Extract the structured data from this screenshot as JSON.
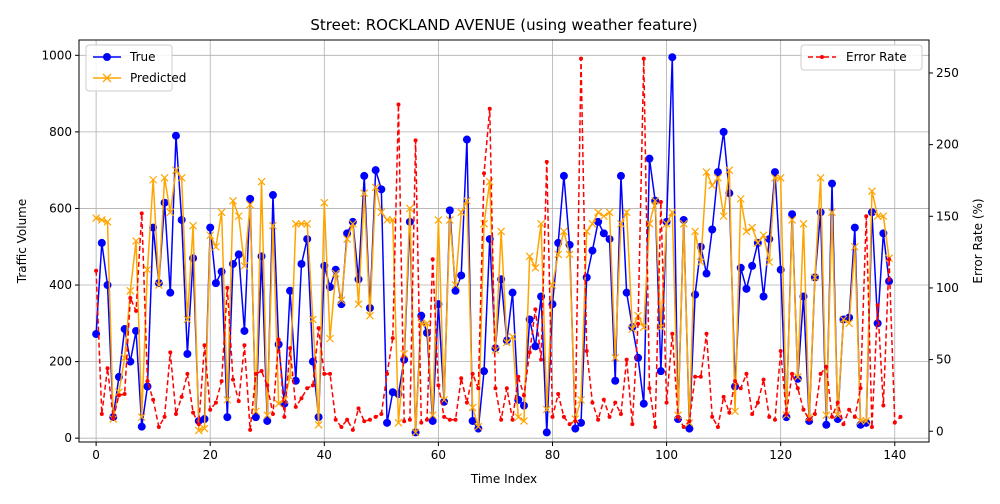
{
  "chart_data": {
    "type": "line",
    "title": "Street: ROCKLAND AVENUE (using weather feature)",
    "xlabel": "Time Index",
    "ylabel": "Traffic Volume",
    "ylabel_right": "Error Rate (%)",
    "xlim": [
      -3,
      146
    ],
    "ylim": [
      -10,
      1040
    ],
    "ylim_right": [
      -7.5,
      273
    ],
    "x_ticks": [
      0,
      20,
      40,
      60,
      80,
      100,
      120,
      140
    ],
    "y_ticks": [
      0,
      200,
      400,
      600,
      800,
      1000
    ],
    "y_ticks_right": [
      0,
      50,
      100,
      150,
      200,
      250
    ],
    "grid": true,
    "legend_left": "upper-left",
    "legend_right": "upper-right",
    "series": [
      {
        "name": "True",
        "axis": "left",
        "color": "#0000ff",
        "marker": "circle",
        "values": [
          272,
          510,
          400,
          55,
          160,
          285,
          200,
          280,
          30,
          135,
          550,
          405,
          615,
          380,
          790,
          570,
          220,
          470,
          45,
          50,
          550,
          405,
          435,
          55,
          455,
          480,
          280,
          625,
          55,
          475,
          45,
          635,
          245,
          90,
          385,
          150,
          455,
          520,
          200,
          55,
          450,
          395,
          440,
          350,
          535,
          565,
          415,
          685,
          340,
          700,
          650,
          40,
          120,
          115,
          205,
          565,
          15,
          320,
          275,
          45,
          350,
          95,
          595,
          385,
          425,
          780,
          45,
          25,
          175,
          520,
          235,
          415,
          255,
          380,
          100,
          85,
          310,
          240,
          370,
          15,
          350,
          510,
          685,
          505,
          25,
          40,
          420,
          490,
          565,
          535,
          520,
          150,
          685,
          380,
          290,
          210,
          90,
          730,
          620,
          175,
          565,
          995,
          50,
          570,
          25,
          375,
          500,
          430,
          545,
          695,
          800,
          640,
          135,
          445,
          390,
          450,
          510,
          370,
          520,
          695,
          440,
          55,
          585,
          155,
          370,
          45,
          420,
          590,
          35,
          665,
          50,
          310,
          315,
          550,
          35,
          40,
          590,
          300,
          535,
          410
        ]
      },
      {
        "name": "Predicted",
        "axis": "left",
        "color": "#ffa500",
        "marker": "x",
        "values": [
          575,
          570,
          565,
          50,
          120,
          210,
          385,
          515,
          55,
          440,
          675,
          400,
          680,
          590,
          700,
          680,
          310,
          555,
          20,
          25,
          530,
          500,
          590,
          100,
          620,
          580,
          450,
          610,
          70,
          670,
          60,
          555,
          90,
          100,
          160,
          560,
          560,
          560,
          310,
          35,
          615,
          260,
          430,
          360,
          520,
          560,
          350,
          640,
          320,
          655,
          590,
          570,
          570,
          40,
          220,
          600,
          15,
          300,
          300,
          60,
          570,
          100,
          570,
          400,
          590,
          620,
          80,
          30,
          560,
          670,
          230,
          540,
          250,
          265,
          55,
          45,
          475,
          445,
          560,
          75,
          400,
          480,
          540,
          480,
          50,
          100,
          540,
          560,
          590,
          580,
          590,
          210,
          560,
          590,
          285,
          320,
          290,
          560,
          620,
          290,
          560,
          590,
          60,
          560,
          40,
          540,
          460,
          695,
          660,
          680,
          580,
          700,
          70,
          625,
          540,
          550,
          510,
          530,
          460,
          680,
          680,
          60,
          570,
          160,
          560,
          55,
          420,
          680,
          60,
          590,
          60,
          310,
          300,
          500,
          45,
          45,
          645,
          580,
          580,
          470
        ]
      },
      {
        "name": "Error Rate",
        "axis": "right",
        "color": "#ff0000",
        "marker": "dot",
        "style": "dashed",
        "values": [
          112,
          12,
          44,
          9,
          25,
          26,
          93,
          84,
          152,
          35,
          22,
          3,
          10,
          55,
          12,
          24,
          40,
          13,
          5,
          60,
          15,
          20,
          35,
          100,
          36,
          21,
          60,
          1,
          40,
          42,
          32,
          12,
          64,
          10,
          58,
          17,
          23,
          30,
          32,
          72,
          40,
          40,
          8,
          3,
          8,
          1,
          16,
          7,
          8,
          10,
          12,
          40,
          65,
          228,
          7,
          8,
          203,
          6,
          8,
          120,
          32,
          10,
          8,
          8,
          37,
          20,
          40,
          30,
          180,
          225,
          30,
          8,
          30,
          8,
          38,
          25,
          55,
          85,
          50,
          188,
          10,
          26,
          10,
          5,
          7,
          260,
          56,
          20,
          8,
          22,
          10,
          20,
          12,
          50,
          5,
          75,
          260,
          30,
          3,
          160,
          20,
          68,
          10,
          3,
          7,
          38,
          38,
          68,
          10,
          3,
          24,
          13,
          35,
          30,
          40,
          12,
          20,
          36,
          10,
          8,
          56,
          12,
          40,
          30,
          15,
          8,
          12,
          40,
          45,
          10,
          20,
          5,
          15,
          10,
          30,
          150,
          3,
          88,
          18,
          120,
          6,
          10
        ]
      }
    ]
  }
}
